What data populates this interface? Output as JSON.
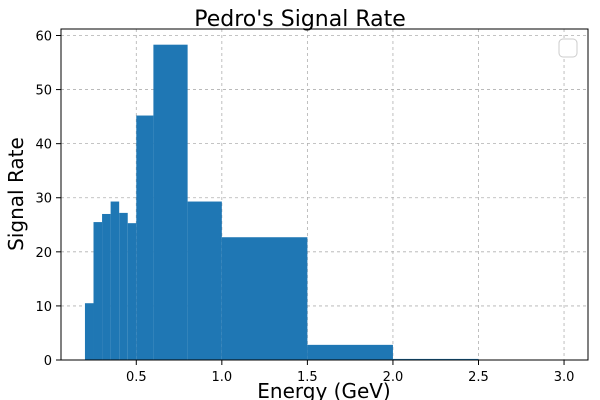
{
  "chart_data": {
    "type": "histogram",
    "title": "Pedro's Signal Rate",
    "xlabel": "Energy (GeV)",
    "ylabel": "Signal Rate",
    "xlim": [
      0.06,
      3.14
    ],
    "ylim": [
      0,
      61.2
    ],
    "xticks": [
      0.5,
      1.0,
      1.5,
      2.0,
      2.5,
      3.0
    ],
    "xtick_labels": [
      "0.5",
      "1.0",
      "1.5",
      "2.0",
      "2.5",
      "3.0"
    ],
    "yticks": [
      0,
      10,
      20,
      30,
      40,
      50,
      60
    ],
    "ytick_labels": [
      "0",
      "10",
      "20",
      "30",
      "40",
      "50",
      "60"
    ],
    "grid": true,
    "legend": "top-right (empty)",
    "bar_color": "#1f77b4",
    "bins": [
      {
        "x0": 0.2,
        "x1": 0.25,
        "value": 10.5
      },
      {
        "x0": 0.25,
        "x1": 0.3,
        "value": 25.5
      },
      {
        "x0": 0.3,
        "x1": 0.35,
        "value": 27.0
      },
      {
        "x0": 0.35,
        "x1": 0.4,
        "value": 29.3
      },
      {
        "x0": 0.4,
        "x1": 0.45,
        "value": 27.2
      },
      {
        "x0": 0.45,
        "x1": 0.5,
        "value": 25.3
      },
      {
        "x0": 0.5,
        "x1": 0.6,
        "value": 45.2
      },
      {
        "x0": 0.6,
        "x1": 0.8,
        "value": 58.3
      },
      {
        "x0": 0.8,
        "x1": 1.0,
        "value": 29.3
      },
      {
        "x0": 1.0,
        "x1": 1.5,
        "value": 22.7
      },
      {
        "x0": 1.5,
        "x1": 2.0,
        "value": 2.8
      },
      {
        "x0": 2.0,
        "x1": 2.5,
        "value": 0.2
      },
      {
        "x0": 2.5,
        "x1": 3.0,
        "value": 0.05
      }
    ]
  }
}
